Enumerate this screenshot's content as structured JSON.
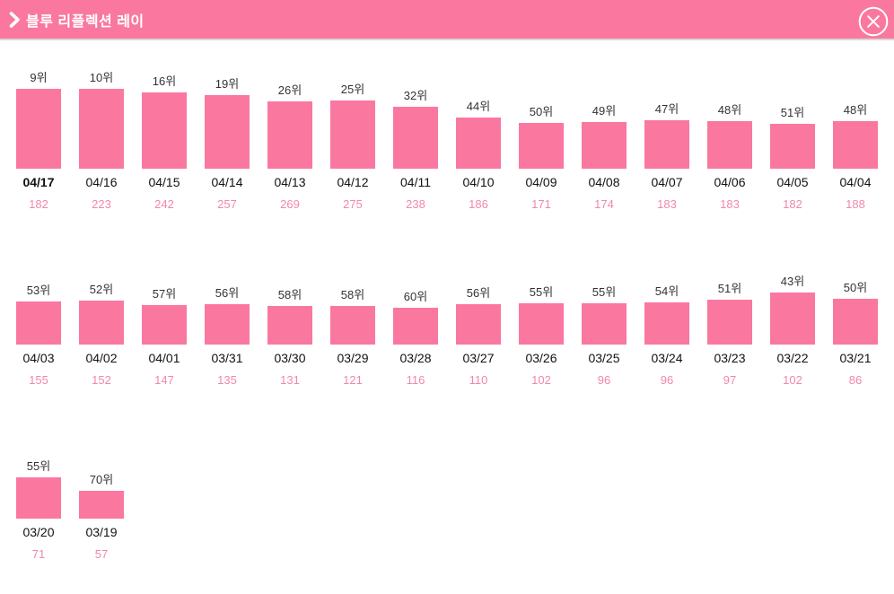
{
  "header": {
    "title": "블루 리플렉션 레이"
  },
  "colors": {
    "header_bg": "#FA78A0",
    "header_border": "#D8D8D8",
    "bar_fill": "#FA78A0",
    "rank_text": "#333333",
    "date_text": "#111111",
    "count_text": "#F287AC"
  },
  "chart_data": {
    "type": "bar",
    "title": "블루 리플렉션 레이",
    "rank_suffix": "위",
    "bar_height_rule": "height_px = max(101 - rank, 25); better rank = taller bar",
    "rows": [
      {
        "days": [
          {
            "rank": 9,
            "rank_label": "9위",
            "date": "04/17",
            "count": 182,
            "bold_date": true
          },
          {
            "rank": 10,
            "rank_label": "10위",
            "date": "04/16",
            "count": 223
          },
          {
            "rank": 16,
            "rank_label": "16위",
            "date": "04/15",
            "count": 242
          },
          {
            "rank": 19,
            "rank_label": "19위",
            "date": "04/14",
            "count": 257
          },
          {
            "rank": 26,
            "rank_label": "26위",
            "date": "04/13",
            "count": 269
          },
          {
            "rank": 25,
            "rank_label": "25위",
            "date": "04/12",
            "count": 275
          },
          {
            "rank": 32,
            "rank_label": "32위",
            "date": "04/11",
            "count": 238
          },
          {
            "rank": 44,
            "rank_label": "44위",
            "date": "04/10",
            "count": 186
          },
          {
            "rank": 50,
            "rank_label": "50위",
            "date": "04/09",
            "count": 171
          },
          {
            "rank": 49,
            "rank_label": "49위",
            "date": "04/08",
            "count": 174
          },
          {
            "rank": 47,
            "rank_label": "47위",
            "date": "04/07",
            "count": 183
          },
          {
            "rank": 48,
            "rank_label": "48위",
            "date": "04/06",
            "count": 183
          },
          {
            "rank": 51,
            "rank_label": "51위",
            "date": "04/05",
            "count": 182
          },
          {
            "rank": 48,
            "rank_label": "48위",
            "date": "04/04",
            "count": 188
          }
        ]
      },
      {
        "days": [
          {
            "rank": 53,
            "rank_label": "53위",
            "date": "04/03",
            "count": 155
          },
          {
            "rank": 52,
            "rank_label": "52위",
            "date": "04/02",
            "count": 152
          },
          {
            "rank": 57,
            "rank_label": "57위",
            "date": "04/01",
            "count": 147
          },
          {
            "rank": 56,
            "rank_label": "56위",
            "date": "03/31",
            "count": 135
          },
          {
            "rank": 58,
            "rank_label": "58위",
            "date": "03/30",
            "count": 131
          },
          {
            "rank": 58,
            "rank_label": "58위",
            "date": "03/29",
            "count": 121
          },
          {
            "rank": 60,
            "rank_label": "60위",
            "date": "03/28",
            "count": 116
          },
          {
            "rank": 56,
            "rank_label": "56위",
            "date": "03/27",
            "count": 110
          },
          {
            "rank": 55,
            "rank_label": "55위",
            "date": "03/26",
            "count": 102
          },
          {
            "rank": 55,
            "rank_label": "55위",
            "date": "03/25",
            "count": 96
          },
          {
            "rank": 54,
            "rank_label": "54위",
            "date": "03/24",
            "count": 96
          },
          {
            "rank": 51,
            "rank_label": "51위",
            "date": "03/23",
            "count": 97
          },
          {
            "rank": 43,
            "rank_label": "43위",
            "date": "03/22",
            "count": 102
          },
          {
            "rank": 50,
            "rank_label": "50위",
            "date": "03/21",
            "count": 86
          }
        ]
      },
      {
        "days": [
          {
            "rank": 55,
            "rank_label": "55위",
            "date": "03/20",
            "count": 71
          },
          {
            "rank": 70,
            "rank_label": "70위",
            "date": "03/19",
            "count": 57
          }
        ]
      }
    ]
  }
}
